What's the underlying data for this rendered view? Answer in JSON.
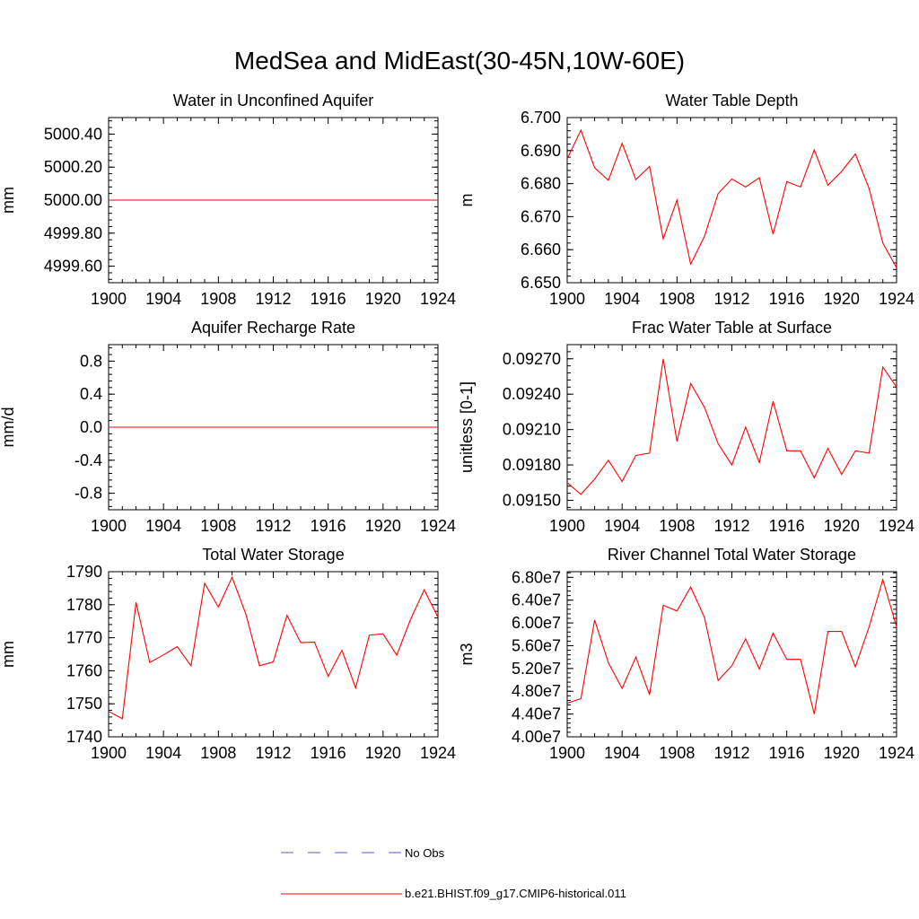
{
  "title": "MedSea and MidEast(30-45N,10W-60E)",
  "legend": {
    "placement": "bottom-center",
    "entries": [
      {
        "label": "No Obs",
        "color": "#5a5ad6",
        "dash": "dashed"
      },
      {
        "label": "b.e21.BHIST.f09_g17.CMIP6-historical.011",
        "color": "#ff0000",
        "dash": "solid"
      }
    ]
  },
  "chart_data": [
    {
      "type": "line",
      "title": "Water in Unconfined Aquifer",
      "ylabel": "mm",
      "xlim": [
        1900,
        1924
      ],
      "ylim": [
        4999.5,
        5000.5
      ],
      "xticks": [
        "1900",
        "1904",
        "1908",
        "1912",
        "1916",
        "1920",
        "1924"
      ],
      "yticks": [
        {
          "value": 4999.6,
          "label": "4999.60"
        },
        {
          "value": 4999.8,
          "label": "4999.80"
        },
        {
          "value": 5000.0,
          "label": "5000.00"
        },
        {
          "value": 5000.2,
          "label": "5000.20"
        },
        {
          "value": 5000.4,
          "label": "5000.40"
        }
      ],
      "series": [
        {
          "name": "b.e21.BHIST.f09_g17.CMIP6-historical.011",
          "color": "#ff0000",
          "x": [
            1900,
            1901,
            1902,
            1903,
            1904,
            1905,
            1906,
            1907,
            1908,
            1909,
            1910,
            1911,
            1912,
            1913,
            1914,
            1915,
            1916,
            1917,
            1918,
            1919,
            1920,
            1921,
            1922,
            1923,
            1924
          ],
          "y": [
            5000,
            5000,
            5000,
            5000,
            5000,
            5000,
            5000,
            5000,
            5000,
            5000,
            5000,
            5000,
            5000,
            5000,
            5000,
            5000,
            5000,
            5000,
            5000,
            5000,
            5000,
            5000,
            5000,
            5000,
            5000
          ]
        }
      ]
    },
    {
      "type": "line",
      "title": "Water Table Depth",
      "ylabel": "m",
      "xlim": [
        1900,
        1924
      ],
      "ylim": [
        6.65,
        6.7
      ],
      "xticks": [
        "1900",
        "1904",
        "1908",
        "1912",
        "1916",
        "1920",
        "1924"
      ],
      "yticks": [
        {
          "value": 6.65,
          "label": "6.650"
        },
        {
          "value": 6.66,
          "label": "6.660"
        },
        {
          "value": 6.67,
          "label": "6.670"
        },
        {
          "value": 6.68,
          "label": "6.680"
        },
        {
          "value": 6.69,
          "label": "6.690"
        },
        {
          "value": 6.7,
          "label": "6.700"
        }
      ],
      "series": [
        {
          "name": "b.e21.BHIST.f09_g17.CMIP6-historical.011",
          "color": "#ff0000",
          "x": [
            1900,
            1901,
            1902,
            1903,
            1904,
            1905,
            1906,
            1907,
            1908,
            1909,
            1910,
            1911,
            1912,
            1913,
            1914,
            1915,
            1916,
            1917,
            1918,
            1919,
            1920,
            1921,
            1922,
            1923,
            1924
          ],
          "y": [
            6.6875,
            6.6962,
            6.6848,
            6.681,
            6.6922,
            6.6812,
            6.6852,
            6.6633,
            6.675,
            6.6556,
            6.664,
            6.677,
            6.6814,
            6.679,
            6.6818,
            6.6647,
            6.6806,
            6.679,
            6.6902,
            6.6795,
            6.6837,
            6.689,
            6.6785,
            6.662,
            6.6545
          ]
        }
      ]
    },
    {
      "type": "line",
      "title": "Aquifer Recharge Rate",
      "ylabel": "mm/d",
      "xlim": [
        1900,
        1924
      ],
      "ylim": [
        -1.0,
        1.0
      ],
      "xticks": [
        "1900",
        "1904",
        "1908",
        "1912",
        "1916",
        "1920",
        "1924"
      ],
      "yticks": [
        {
          "value": -0.8,
          "label": "-0.8"
        },
        {
          "value": -0.4,
          "label": "-0.4"
        },
        {
          "value": 0.0,
          "label": "0.0"
        },
        {
          "value": 0.4,
          "label": "0.4"
        },
        {
          "value": 0.8,
          "label": "0.8"
        }
      ],
      "series": [
        {
          "name": "b.e21.BHIST.f09_g17.CMIP6-historical.011",
          "color": "#ff0000",
          "x": [
            1900,
            1901,
            1902,
            1903,
            1904,
            1905,
            1906,
            1907,
            1908,
            1909,
            1910,
            1911,
            1912,
            1913,
            1914,
            1915,
            1916,
            1917,
            1918,
            1919,
            1920,
            1921,
            1922,
            1923,
            1924
          ],
          "y": [
            0,
            0,
            0,
            0,
            0,
            0,
            0,
            0,
            0,
            0,
            0,
            0,
            0,
            0,
            0,
            0,
            0,
            0,
            0,
            0,
            0,
            0,
            0,
            0,
            0
          ]
        }
      ]
    },
    {
      "type": "line",
      "title": "Frac Water Table at Surface",
      "ylabel": "unitless [0-1]",
      "xlim": [
        1900,
        1924
      ],
      "ylim": [
        0.09142,
        0.09282
      ],
      "xticks": [
        "1900",
        "1904",
        "1908",
        "1912",
        "1916",
        "1920",
        "1924"
      ],
      "yticks": [
        {
          "value": 0.0915,
          "label": "0.09150"
        },
        {
          "value": 0.0918,
          "label": "0.09180"
        },
        {
          "value": 0.0921,
          "label": "0.09210"
        },
        {
          "value": 0.0924,
          "label": "0.09240"
        },
        {
          "value": 0.0927,
          "label": "0.09270"
        }
      ],
      "series": [
        {
          "name": "b.e21.BHIST.f09_g17.CMIP6-historical.011",
          "color": "#ff0000",
          "x": [
            1900,
            1901,
            1902,
            1903,
            1904,
            1905,
            1906,
            1907,
            1908,
            1909,
            1910,
            1911,
            1912,
            1913,
            1914,
            1915,
            1916,
            1917,
            1918,
            1919,
            1920,
            1921,
            1922,
            1923,
            1924
          ],
          "y": [
            0.09165,
            0.09155,
            0.09168,
            0.09184,
            0.09166,
            0.09188,
            0.0919,
            0.0927,
            0.092,
            0.09249,
            0.09229,
            0.09198,
            0.0918,
            0.09212,
            0.09182,
            0.09234,
            0.09192,
            0.09192,
            0.09169,
            0.09194,
            0.09172,
            0.09192,
            0.0919,
            0.09263,
            0.09246
          ]
        }
      ]
    },
    {
      "type": "line",
      "title": "Total Water Storage",
      "ylabel": "mm",
      "xlim": [
        1900,
        1924
      ],
      "ylim": [
        1740,
        1790
      ],
      "xticks": [
        "1900",
        "1904",
        "1908",
        "1912",
        "1916",
        "1920",
        "1924"
      ],
      "yticks": [
        {
          "value": 1740,
          "label": "1740"
        },
        {
          "value": 1750,
          "label": "1750"
        },
        {
          "value": 1760,
          "label": "1760"
        },
        {
          "value": 1770,
          "label": "1770"
        },
        {
          "value": 1780,
          "label": "1780"
        },
        {
          "value": 1790,
          "label": "1790"
        }
      ],
      "series": [
        {
          "name": "b.e21.BHIST.f09_g17.CMIP6-historical.011",
          "color": "#ff0000",
          "x": [
            1900,
            1901,
            1902,
            1903,
            1904,
            1905,
            1906,
            1907,
            1908,
            1909,
            1910,
            1911,
            1912,
            1913,
            1914,
            1915,
            1916,
            1917,
            1918,
            1919,
            1920,
            1921,
            1922,
            1923,
            1924
          ],
          "y": [
            1747.7,
            1745.5,
            1780.7,
            1762.5,
            1764.8,
            1767.3,
            1761.5,
            1786.5,
            1779.3,
            1788.3,
            1777.2,
            1761.5,
            1762.7,
            1776.8,
            1768.5,
            1768.7,
            1758.3,
            1766.2,
            1754.8,
            1770.8,
            1771.2,
            1764.7,
            1775.5,
            1784.5,
            1776.2
          ]
        }
      ]
    },
    {
      "type": "line",
      "title": "River Channel Total Water Storage",
      "ylabel": "m3",
      "xlim": [
        1900,
        1924
      ],
      "ylim": [
        40000000,
        69000000
      ],
      "xticks": [
        "1900",
        "1904",
        "1908",
        "1912",
        "1916",
        "1920",
        "1924"
      ],
      "yticks": [
        {
          "value": 40000000,
          "label": "4.00e7"
        },
        {
          "value": 44000000,
          "label": "4.40e7"
        },
        {
          "value": 48000000,
          "label": "4.80e7"
        },
        {
          "value": 52000000,
          "label": "5.20e7"
        },
        {
          "value": 56000000,
          "label": "5.60e7"
        },
        {
          "value": 60000000,
          "label": "6.00e7"
        },
        {
          "value": 64000000,
          "label": "6.40e7"
        },
        {
          "value": 68000000,
          "label": "6.80e7"
        }
      ],
      "series": [
        {
          "name": "b.e21.BHIST.f09_g17.CMIP6-historical.011",
          "color": "#ff0000",
          "x": [
            1900,
            1901,
            1902,
            1903,
            1904,
            1905,
            1906,
            1907,
            1908,
            1909,
            1910,
            1911,
            1912,
            1913,
            1914,
            1915,
            1916,
            1917,
            1918,
            1919,
            1920,
            1921,
            1922,
            1923,
            1924
          ],
          "y": [
            45900000,
            46700000,
            60500000,
            53000000,
            48500000,
            54000000,
            47400000,
            63100000,
            62100000,
            66300000,
            61000000,
            49900000,
            52500000,
            57200000,
            51900000,
            58200000,
            53600000,
            53600000,
            44000000,
            58500000,
            58500000,
            52300000,
            59300000,
            67600000,
            59300000
          ]
        }
      ]
    }
  ]
}
